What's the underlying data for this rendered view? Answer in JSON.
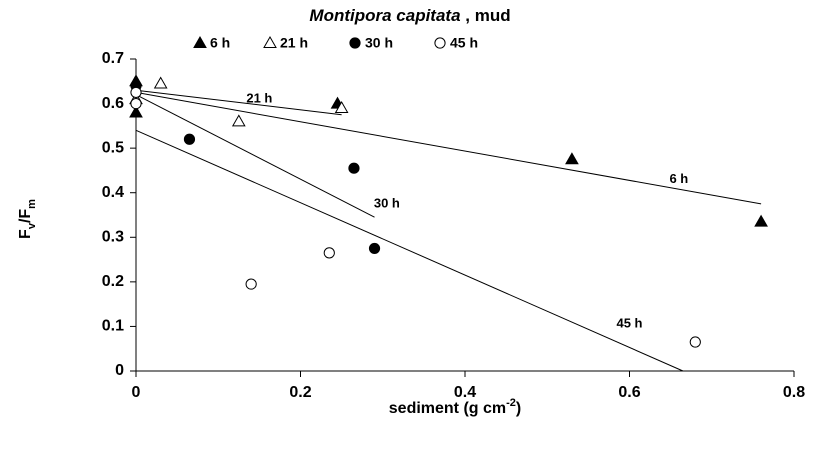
{
  "chart_data": {
    "type": "scatter",
    "title": {
      "italic": "Montipora capitata",
      "rest": " , mud"
    },
    "ylabel": [
      "F",
      "v",
      "/F",
      "m"
    ],
    "xlabel": [
      "sediment (g cm",
      "-2",
      ")"
    ],
    "xlim": [
      0,
      0.8
    ],
    "xticks": [
      0,
      0.2,
      0.4,
      0.6,
      0.8
    ],
    "ylim": [
      0,
      0.7
    ],
    "yticks": [
      0,
      0.1,
      0.2,
      0.3,
      0.4,
      0.5,
      0.6,
      0.7
    ],
    "series": [
      {
        "name": "6 h",
        "marker": "triangle",
        "filled": true,
        "color": "#000000",
        "x": [
          0,
          0,
          0.245,
          0.53,
          0.76
        ],
        "values": [
          0.65,
          0.58,
          0.6,
          0.475,
          0.335
        ]
      },
      {
        "name": "21 h",
        "marker": "triangle",
        "filled": false,
        "color": "#000000",
        "x": [
          0,
          0.03,
          0.125,
          0.25
        ],
        "values": [
          0.61,
          0.645,
          0.56,
          0.59
        ]
      },
      {
        "name": "30 h",
        "marker": "circle",
        "filled": true,
        "color": "#000000",
        "x": [
          0,
          0.065,
          0.265,
          0.29
        ],
        "values": [
          0.64,
          0.52,
          0.455,
          0.275
        ]
      },
      {
        "name": "45 h",
        "marker": "circle",
        "filled": false,
        "color": "#000000",
        "x": [
          0,
          0,
          0.14,
          0.235,
          0.68
        ],
        "values": [
          0.625,
          0.6,
          0.195,
          0.265,
          0.065
        ]
      }
    ],
    "fits": [
      {
        "label": "6 h",
        "x": [
          0,
          0.76
        ],
        "values": [
          0.625,
          0.375
        ]
      },
      {
        "label": "21 h",
        "x": [
          0,
          0.25
        ],
        "values": [
          0.63,
          0.575
        ]
      },
      {
        "label": "30 h",
        "x": [
          0,
          0.29
        ],
        "values": [
          0.62,
          0.345
        ]
      },
      {
        "label": "45 h",
        "x": [
          0,
          0.665
        ],
        "values": [
          0.54,
          0
        ]
      }
    ]
  }
}
